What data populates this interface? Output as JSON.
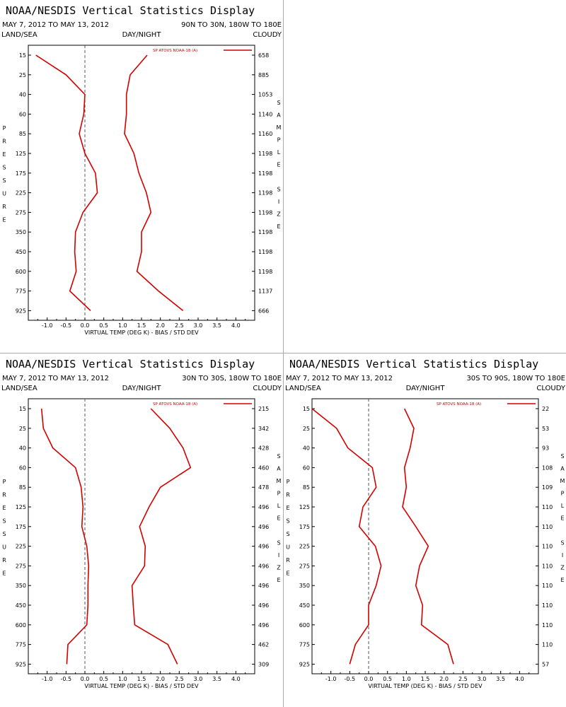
{
  "colors": {
    "series": "#d40000",
    "frame": "#000000",
    "zero_line": "#555555",
    "divider": "#aaaaaa"
  },
  "chart_data": [
    {
      "type": "line",
      "title": "NOAA/NESDIS Vertical Statistics Display",
      "date_range": "MAY 7, 2012 TO MAY 13, 2012",
      "region": "90N TO 30N, 180W TO 180E",
      "filters": [
        "LAND/SEA",
        "DAY/NIGHT",
        "CLOUDY"
      ],
      "legend": "SP ATOVS NOAA-18 (A)",
      "xlabel": "VIRTUAL TEMP (DEG K) - BIAS / STD DEV",
      "ylabel": "PRESSURE",
      "right_label": "SAMPLE SIZE",
      "xlim": [
        -1.5,
        4.5
      ],
      "xticks": [
        "-1.0",
        "-0.5",
        "0.0",
        "0.5",
        "1.0",
        "1.5",
        "2.0",
        "2.5",
        "3.0",
        "3.5",
        "4.0"
      ],
      "pressure_levels": [
        "15",
        "25",
        "40",
        "60",
        "85",
        "125",
        "175",
        "225",
        "275",
        "350",
        "450",
        "600",
        "775",
        "925"
      ],
      "sample_sizes": [
        "658",
        "885",
        "1053",
        "1140",
        "1160",
        "1198",
        "1198",
        "1198",
        "1198",
        "1198",
        "1198",
        "1198",
        "1137",
        "666"
      ],
      "series": [
        {
          "name": "Bias",
          "values": [
            -1.3,
            -0.5,
            0.0,
            -0.03,
            -0.15,
            0.0,
            0.28,
            0.33,
            -0.05,
            -0.25,
            -0.27,
            -0.23,
            -0.4,
            0.15
          ]
        },
        {
          "name": "Std Dev",
          "values": [
            1.65,
            1.2,
            1.1,
            1.1,
            1.05,
            1.3,
            1.43,
            1.63,
            1.75,
            1.5,
            1.5,
            1.38,
            1.95,
            2.6
          ]
        }
      ]
    },
    {
      "type": "line",
      "title": "NOAA/NESDIS Vertical Statistics Display",
      "date_range": "MAY 7, 2012 TO MAY 13, 2012",
      "region": "30N TO 30S, 180W TO 180E",
      "filters": [
        "LAND/SEA",
        "DAY/NIGHT",
        "CLOUDY"
      ],
      "legend": "SP ATOVS NOAA-18 (A)",
      "xlabel": "VIRTUAL TEMP (DEG K) - BIAS / STD DEV",
      "ylabel": "PRESSURE",
      "right_label": "SAMPLE SIZE",
      "xlim": [
        -1.5,
        4.5
      ],
      "xticks": [
        "-1.0",
        "-0.5",
        "0.0",
        "0.5",
        "1.0",
        "1.5",
        "2.0",
        "2.5",
        "3.0",
        "3.5",
        "4.0"
      ],
      "pressure_levels": [
        "15",
        "25",
        "40",
        "60",
        "85",
        "125",
        "175",
        "225",
        "275",
        "350",
        "450",
        "600",
        "775",
        "925"
      ],
      "sample_sizes": [
        "215",
        "342",
        "428",
        "460",
        "478",
        "496",
        "496",
        "496",
        "496",
        "496",
        "496",
        "496",
        "462",
        "309"
      ],
      "series": [
        {
          "name": "Bias",
          "values": [
            -1.15,
            -1.1,
            -0.85,
            -0.25,
            -0.1,
            -0.05,
            -0.08,
            0.05,
            0.1,
            0.08,
            0.08,
            0.05,
            -0.45,
            -0.48
          ]
        },
        {
          "name": "Std Dev",
          "values": [
            1.75,
            2.25,
            2.6,
            2.8,
            2.0,
            1.7,
            1.45,
            1.6,
            1.58,
            1.25,
            1.28,
            1.32,
            2.2,
            2.45
          ]
        }
      ]
    },
    {
      "type": "line",
      "title": "NOAA/NESDIS Vertical Statistics Display",
      "date_range": "MAY 7, 2012 TO MAY 13, 2012",
      "region": "30S TO 90S, 180W TO 180E",
      "filters": [
        "LAND/SEA",
        "DAY/NIGHT",
        "CLOUDY"
      ],
      "legend": "SP ATOVS NOAA-18 (A)",
      "xlabel": "VIRTUAL TEMP (DEG K) - BIAS / STD DEV",
      "ylabel": "PRESSURE",
      "right_label": "SAMPLE SIZE",
      "xlim": [
        -1.5,
        4.5
      ],
      "xticks": [
        "-1.0",
        "-0.5",
        "0.0",
        "0.5",
        "1.0",
        "1.5",
        "2.0",
        "2.5",
        "3.0",
        "3.5",
        "4.0"
      ],
      "pressure_levels": [
        "15",
        "25",
        "40",
        "60",
        "85",
        "125",
        "175",
        "225",
        "275",
        "350",
        "450",
        "600",
        "775",
        "925"
      ],
      "sample_sizes": [
        "22",
        "53",
        "93",
        "108",
        "109",
        "110",
        "110",
        "110",
        "110",
        "110",
        "110",
        "110",
        "110",
        "57"
      ],
      "series": [
        {
          "name": "Bias",
          "values": [
            -1.5,
            -0.85,
            -0.55,
            0.1,
            0.2,
            -0.15,
            -0.25,
            0.18,
            0.33,
            0.2,
            0.0,
            0.0,
            -0.35,
            -0.5
          ]
        },
        {
          "name": "Std Dev",
          "values": [
            0.95,
            1.2,
            1.1,
            0.95,
            1.0,
            0.9,
            1.25,
            1.58,
            1.35,
            1.25,
            1.43,
            1.4,
            2.1,
            2.25
          ]
        }
      ]
    }
  ]
}
